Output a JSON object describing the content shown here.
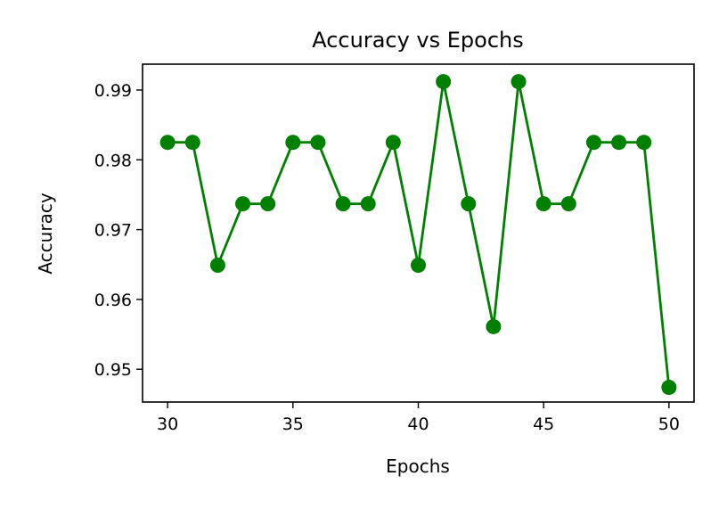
{
  "chart_data": {
    "type": "line",
    "title": "Accuracy vs Epochs",
    "xlabel": "Epochs",
    "ylabel": "Accuracy",
    "xlim": [
      29,
      51
    ],
    "ylim": [
      0.9453,
      0.9937
    ],
    "x_ticks": [
      "30",
      "35",
      "40",
      "45",
      "50"
    ],
    "y_ticks": [
      "0.95",
      "0.96",
      "0.97",
      "0.98",
      "0.99"
    ],
    "grid": false,
    "legend": "none",
    "series": [
      {
        "color": "#008000",
        "marker": "circle",
        "x": [
          30,
          31,
          32,
          33,
          34,
          35,
          36,
          37,
          38,
          39,
          40,
          41,
          42,
          43,
          44,
          45,
          46,
          47,
          48,
          49,
          50
        ],
        "y": [
          0.9825,
          0.9825,
          0.9649,
          0.9737,
          0.9737,
          0.9825,
          0.9825,
          0.9737,
          0.9737,
          0.9825,
          0.9649,
          0.9912,
          0.9737,
          0.9561,
          0.9912,
          0.9737,
          0.9737,
          0.9825,
          0.9825,
          0.9825,
          0.9474
        ]
      }
    ]
  }
}
